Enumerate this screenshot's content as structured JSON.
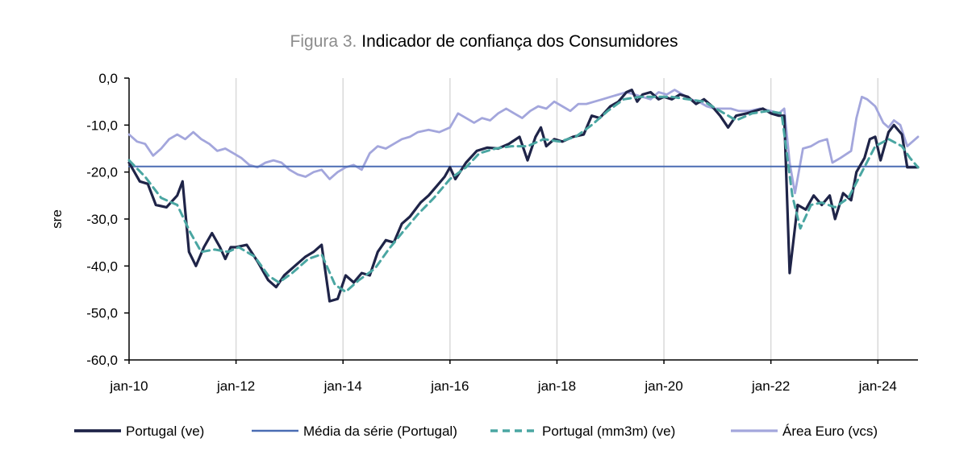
{
  "figure": {
    "prefix": "Figura 3.",
    "title": "Indicador de confiança dos Consumidores"
  },
  "chart_data": {
    "type": "line",
    "title": "Figura 3. Indicador de confiança dos Consumidores",
    "xlabel": "",
    "ylabel": "sre",
    "ylim": [
      -60,
      0
    ],
    "yticks": [
      0,
      -10,
      -20,
      -30,
      -40,
      -50,
      -60
    ],
    "ytick_labels": [
      "0,0",
      "-10,0",
      "-20,0",
      "-30,0",
      "-40,0",
      "-50,0",
      "-60,0"
    ],
    "xlim": [
      2010.0,
      2024.75
    ],
    "xticks": [
      {
        "label": "jan-10",
        "x": 2010
      },
      {
        "label": "jan-12",
        "x": 2012
      },
      {
        "label": "jan-14",
        "x": 2014
      },
      {
        "label": "jan-16",
        "x": 2016
      },
      {
        "label": "jan-18",
        "x": 2018
      },
      {
        "label": "jan-20",
        "x": 2020
      },
      {
        "label": "jan-22",
        "x": 2022
      },
      {
        "label": "jan-24",
        "x": 2024
      }
    ],
    "grid": "vertical",
    "legend_position": "bottom",
    "colors": {
      "portugal": "#1f2448",
      "media": "#4a6cb3",
      "mm3m": "#4aa6a2",
      "euro": "#a3a6dc"
    },
    "series": [
      {
        "name": "Portugal (ve)",
        "style": "solid-dark",
        "points": [
          [
            2010.0,
            -18.0
          ],
          [
            2010.2,
            -22.0
          ],
          [
            2010.35,
            -22.5
          ],
          [
            2010.5,
            -27.0
          ],
          [
            2010.7,
            -27.5
          ],
          [
            2010.9,
            -25.0
          ],
          [
            2011.0,
            -22.0
          ],
          [
            2011.12,
            -37.0
          ],
          [
            2011.25,
            -40.0
          ],
          [
            2011.4,
            -36.0
          ],
          [
            2011.55,
            -33.0
          ],
          [
            2011.7,
            -36.0
          ],
          [
            2011.8,
            -38.5
          ],
          [
            2011.9,
            -36.0
          ],
          [
            2012.0,
            -36.0
          ],
          [
            2012.2,
            -35.5
          ],
          [
            2012.4,
            -39.0
          ],
          [
            2012.6,
            -43.0
          ],
          [
            2012.75,
            -44.5
          ],
          [
            2012.9,
            -42.0
          ],
          [
            2013.1,
            -40.0
          ],
          [
            2013.3,
            -38.0
          ],
          [
            2013.45,
            -37.0
          ],
          [
            2013.6,
            -35.5
          ],
          [
            2013.75,
            -47.5
          ],
          [
            2013.9,
            -47.0
          ],
          [
            2014.05,
            -42.0
          ],
          [
            2014.2,
            -43.5
          ],
          [
            2014.35,
            -41.5
          ],
          [
            2014.5,
            -42.0
          ],
          [
            2014.65,
            -37.0
          ],
          [
            2014.8,
            -34.5
          ],
          [
            2014.95,
            -35.0
          ],
          [
            2015.1,
            -31.0
          ],
          [
            2015.25,
            -29.5
          ],
          [
            2015.45,
            -26.5
          ],
          [
            2015.6,
            -25.0
          ],
          [
            2015.75,
            -23.0
          ],
          [
            2015.9,
            -21.0
          ],
          [
            2016.0,
            -19.0
          ],
          [
            2016.1,
            -21.5
          ],
          [
            2016.3,
            -18.0
          ],
          [
            2016.5,
            -15.5
          ],
          [
            2016.7,
            -14.8
          ],
          [
            2016.9,
            -15.0
          ],
          [
            2017.1,
            -14.0
          ],
          [
            2017.3,
            -12.5
          ],
          [
            2017.45,
            -17.5
          ],
          [
            2017.6,
            -12.5
          ],
          [
            2017.7,
            -10.5
          ],
          [
            2017.8,
            -14.5
          ],
          [
            2017.95,
            -13.0
          ],
          [
            2018.1,
            -13.5
          ],
          [
            2018.3,
            -12.5
          ],
          [
            2018.5,
            -12.0
          ],
          [
            2018.65,
            -8.0
          ],
          [
            2018.8,
            -8.5
          ],
          [
            2019.0,
            -6.0
          ],
          [
            2019.15,
            -5.0
          ],
          [
            2019.3,
            -3.0
          ],
          [
            2019.4,
            -2.5
          ],
          [
            2019.5,
            -5.0
          ],
          [
            2019.6,
            -3.5
          ],
          [
            2019.75,
            -3.0
          ],
          [
            2019.9,
            -4.5
          ],
          [
            2020.0,
            -4.0
          ],
          [
            2020.15,
            -4.5
          ],
          [
            2020.3,
            -3.5
          ],
          [
            2020.45,
            -4.0
          ],
          [
            2020.6,
            -5.5
          ],
          [
            2020.75,
            -4.5
          ],
          [
            2020.9,
            -6.0
          ],
          [
            2021.05,
            -8.0
          ],
          [
            2021.2,
            -10.5
          ],
          [
            2021.35,
            -8.0
          ],
          [
            2021.55,
            -7.5
          ],
          [
            2021.7,
            -7.0
          ],
          [
            2021.85,
            -6.5
          ],
          [
            2022.0,
            -7.5
          ],
          [
            2022.15,
            -8.0
          ],
          [
            2022.25,
            -8.0
          ],
          [
            2022.35,
            -41.5
          ],
          [
            2022.5,
            -27.0
          ],
          [
            2022.65,
            -28.0
          ],
          [
            2022.8,
            -25.0
          ],
          [
            2022.95,
            -27.0
          ],
          [
            2023.1,
            -25.0
          ],
          [
            2023.2,
            -30.0
          ],
          [
            2023.35,
            -24.5
          ],
          [
            2023.5,
            -26.0
          ],
          [
            2023.6,
            -20.0
          ],
          [
            2023.75,
            -17.0
          ],
          [
            2023.85,
            -13.0
          ],
          [
            2023.95,
            -12.5
          ],
          [
            2024.05,
            -17.5
          ],
          [
            2024.2,
            -11.5
          ],
          [
            2024.3,
            -10.0
          ],
          [
            2024.45,
            -12.0
          ],
          [
            2024.55,
            -19.0
          ],
          [
            2024.7,
            -19.0
          ],
          [
            2024.75,
            -19.0
          ]
        ]
      },
      {
        "name": "Média da série (Portugal)",
        "style": "solid-blue",
        "points": [
          [
            2010.0,
            -18.8
          ],
          [
            2024.75,
            -18.8
          ]
        ]
      },
      {
        "name": "Portugal (mm3m) (ve)",
        "style": "dashed-teal",
        "points": [
          [
            2010.0,
            -17.5
          ],
          [
            2010.3,
            -21.0
          ],
          [
            2010.6,
            -25.5
          ],
          [
            2010.9,
            -27.0
          ],
          [
            2011.15,
            -33.0
          ],
          [
            2011.35,
            -37.0
          ],
          [
            2011.6,
            -36.5
          ],
          [
            2011.85,
            -37.0
          ],
          [
            2012.05,
            -36.0
          ],
          [
            2012.35,
            -38.0
          ],
          [
            2012.6,
            -42.0
          ],
          [
            2012.8,
            -43.5
          ],
          [
            2013.05,
            -41.5
          ],
          [
            2013.35,
            -38.5
          ],
          [
            2013.6,
            -37.5
          ],
          [
            2013.85,
            -44.0
          ],
          [
            2014.05,
            -45.5
          ],
          [
            2014.3,
            -43.0
          ],
          [
            2014.6,
            -40.5
          ],
          [
            2014.85,
            -36.5
          ],
          [
            2015.1,
            -33.0
          ],
          [
            2015.4,
            -29.0
          ],
          [
            2015.7,
            -25.5
          ],
          [
            2016.0,
            -21.5
          ],
          [
            2016.3,
            -19.0
          ],
          [
            2016.55,
            -16.0
          ],
          [
            2016.85,
            -15.0
          ],
          [
            2017.15,
            -14.5
          ],
          [
            2017.45,
            -14.5
          ],
          [
            2017.75,
            -13.0
          ],
          [
            2018.05,
            -13.5
          ],
          [
            2018.35,
            -12.5
          ],
          [
            2018.65,
            -10.0
          ],
          [
            2018.95,
            -7.0
          ],
          [
            2019.25,
            -4.5
          ],
          [
            2019.55,
            -4.0
          ],
          [
            2019.85,
            -4.0
          ],
          [
            2020.15,
            -4.0
          ],
          [
            2020.45,
            -4.5
          ],
          [
            2020.75,
            -5.0
          ],
          [
            2021.05,
            -7.0
          ],
          [
            2021.35,
            -9.0
          ],
          [
            2021.65,
            -7.5
          ],
          [
            2021.95,
            -7.0
          ],
          [
            2022.2,
            -7.5
          ],
          [
            2022.4,
            -25.0
          ],
          [
            2022.55,
            -32.0
          ],
          [
            2022.75,
            -27.0
          ],
          [
            2022.95,
            -26.5
          ],
          [
            2023.2,
            -27.5
          ],
          [
            2023.45,
            -25.5
          ],
          [
            2023.7,
            -20.0
          ],
          [
            2023.95,
            -14.5
          ],
          [
            2024.2,
            -13.0
          ],
          [
            2024.45,
            -14.5
          ],
          [
            2024.6,
            -17.0
          ],
          [
            2024.75,
            -19.0
          ]
        ]
      },
      {
        "name": "Área Euro (vcs)",
        "style": "solid-lavender",
        "points": [
          [
            2010.0,
            -12.0
          ],
          [
            2010.15,
            -13.5
          ],
          [
            2010.3,
            -14.0
          ],
          [
            2010.45,
            -16.5
          ],
          [
            2010.6,
            -15.0
          ],
          [
            2010.75,
            -13.0
          ],
          [
            2010.9,
            -12.0
          ],
          [
            2011.05,
            -13.0
          ],
          [
            2011.2,
            -11.5
          ],
          [
            2011.35,
            -13.0
          ],
          [
            2011.5,
            -14.0
          ],
          [
            2011.65,
            -15.5
          ],
          [
            2011.8,
            -15.0
          ],
          [
            2011.95,
            -16.0
          ],
          [
            2012.1,
            -17.0
          ],
          [
            2012.25,
            -18.5
          ],
          [
            2012.4,
            -19.0
          ],
          [
            2012.55,
            -18.0
          ],
          [
            2012.7,
            -17.5
          ],
          [
            2012.85,
            -18.0
          ],
          [
            2013.0,
            -19.5
          ],
          [
            2013.15,
            -20.5
          ],
          [
            2013.3,
            -21.0
          ],
          [
            2013.45,
            -20.0
          ],
          [
            2013.6,
            -19.5
          ],
          [
            2013.75,
            -21.5
          ],
          [
            2013.9,
            -20.0
          ],
          [
            2014.05,
            -19.0
          ],
          [
            2014.2,
            -18.5
          ],
          [
            2014.35,
            -19.5
          ],
          [
            2014.5,
            -16.0
          ],
          [
            2014.65,
            -14.5
          ],
          [
            2014.8,
            -15.0
          ],
          [
            2014.95,
            -14.0
          ],
          [
            2015.1,
            -13.0
          ],
          [
            2015.25,
            -12.5
          ],
          [
            2015.4,
            -11.5
          ],
          [
            2015.6,
            -11.0
          ],
          [
            2015.8,
            -11.5
          ],
          [
            2016.0,
            -10.5
          ],
          [
            2016.15,
            -7.5
          ],
          [
            2016.3,
            -8.5
          ],
          [
            2016.45,
            -9.5
          ],
          [
            2016.6,
            -8.5
          ],
          [
            2016.75,
            -9.0
          ],
          [
            2016.9,
            -7.5
          ],
          [
            2017.05,
            -6.5
          ],
          [
            2017.2,
            -7.5
          ],
          [
            2017.35,
            -8.5
          ],
          [
            2017.5,
            -7.0
          ],
          [
            2017.65,
            -6.0
          ],
          [
            2017.8,
            -6.5
          ],
          [
            2017.95,
            -5.0
          ],
          [
            2018.1,
            -6.0
          ],
          [
            2018.25,
            -7.0
          ],
          [
            2018.4,
            -5.5
          ],
          [
            2018.55,
            -5.5
          ],
          [
            2018.7,
            -5.0
          ],
          [
            2018.85,
            -4.5
          ],
          [
            2019.0,
            -4.0
          ],
          [
            2019.15,
            -3.5
          ],
          [
            2019.3,
            -3.0
          ],
          [
            2019.45,
            -3.5
          ],
          [
            2019.6,
            -4.0
          ],
          [
            2019.75,
            -4.5
          ],
          [
            2019.9,
            -3.0
          ],
          [
            2020.05,
            -3.5
          ],
          [
            2020.2,
            -2.5
          ],
          [
            2020.35,
            -3.5
          ],
          [
            2020.5,
            -4.5
          ],
          [
            2020.65,
            -5.0
          ],
          [
            2020.8,
            -6.0
          ],
          [
            2020.95,
            -6.5
          ],
          [
            2021.1,
            -6.5
          ],
          [
            2021.25,
            -6.5
          ],
          [
            2021.4,
            -7.0
          ],
          [
            2021.6,
            -7.0
          ],
          [
            2021.8,
            -6.5
          ],
          [
            2022.0,
            -7.0
          ],
          [
            2022.15,
            -7.5
          ],
          [
            2022.25,
            -6.5
          ],
          [
            2022.35,
            -18.0
          ],
          [
            2022.45,
            -24.5
          ],
          [
            2022.6,
            -15.0
          ],
          [
            2022.75,
            -14.5
          ],
          [
            2022.9,
            -13.5
          ],
          [
            2023.05,
            -13.0
          ],
          [
            2023.15,
            -18.0
          ],
          [
            2023.3,
            -17.0
          ],
          [
            2023.5,
            -15.5
          ],
          [
            2023.6,
            -8.5
          ],
          [
            2023.7,
            -4.0
          ],
          [
            2023.8,
            -4.5
          ],
          [
            2023.95,
            -6.0
          ],
          [
            2024.1,
            -9.5
          ],
          [
            2024.2,
            -10.5
          ],
          [
            2024.3,
            -9.0
          ],
          [
            2024.42,
            -10.0
          ],
          [
            2024.55,
            -14.5
          ],
          [
            2024.75,
            -12.5
          ]
        ]
      }
    ]
  },
  "legend": {
    "items": [
      "Portugal (ve)",
      "Média da série (Portugal)",
      "Portugal (mm3m) (ve)",
      "Área Euro (vcs)"
    ]
  }
}
